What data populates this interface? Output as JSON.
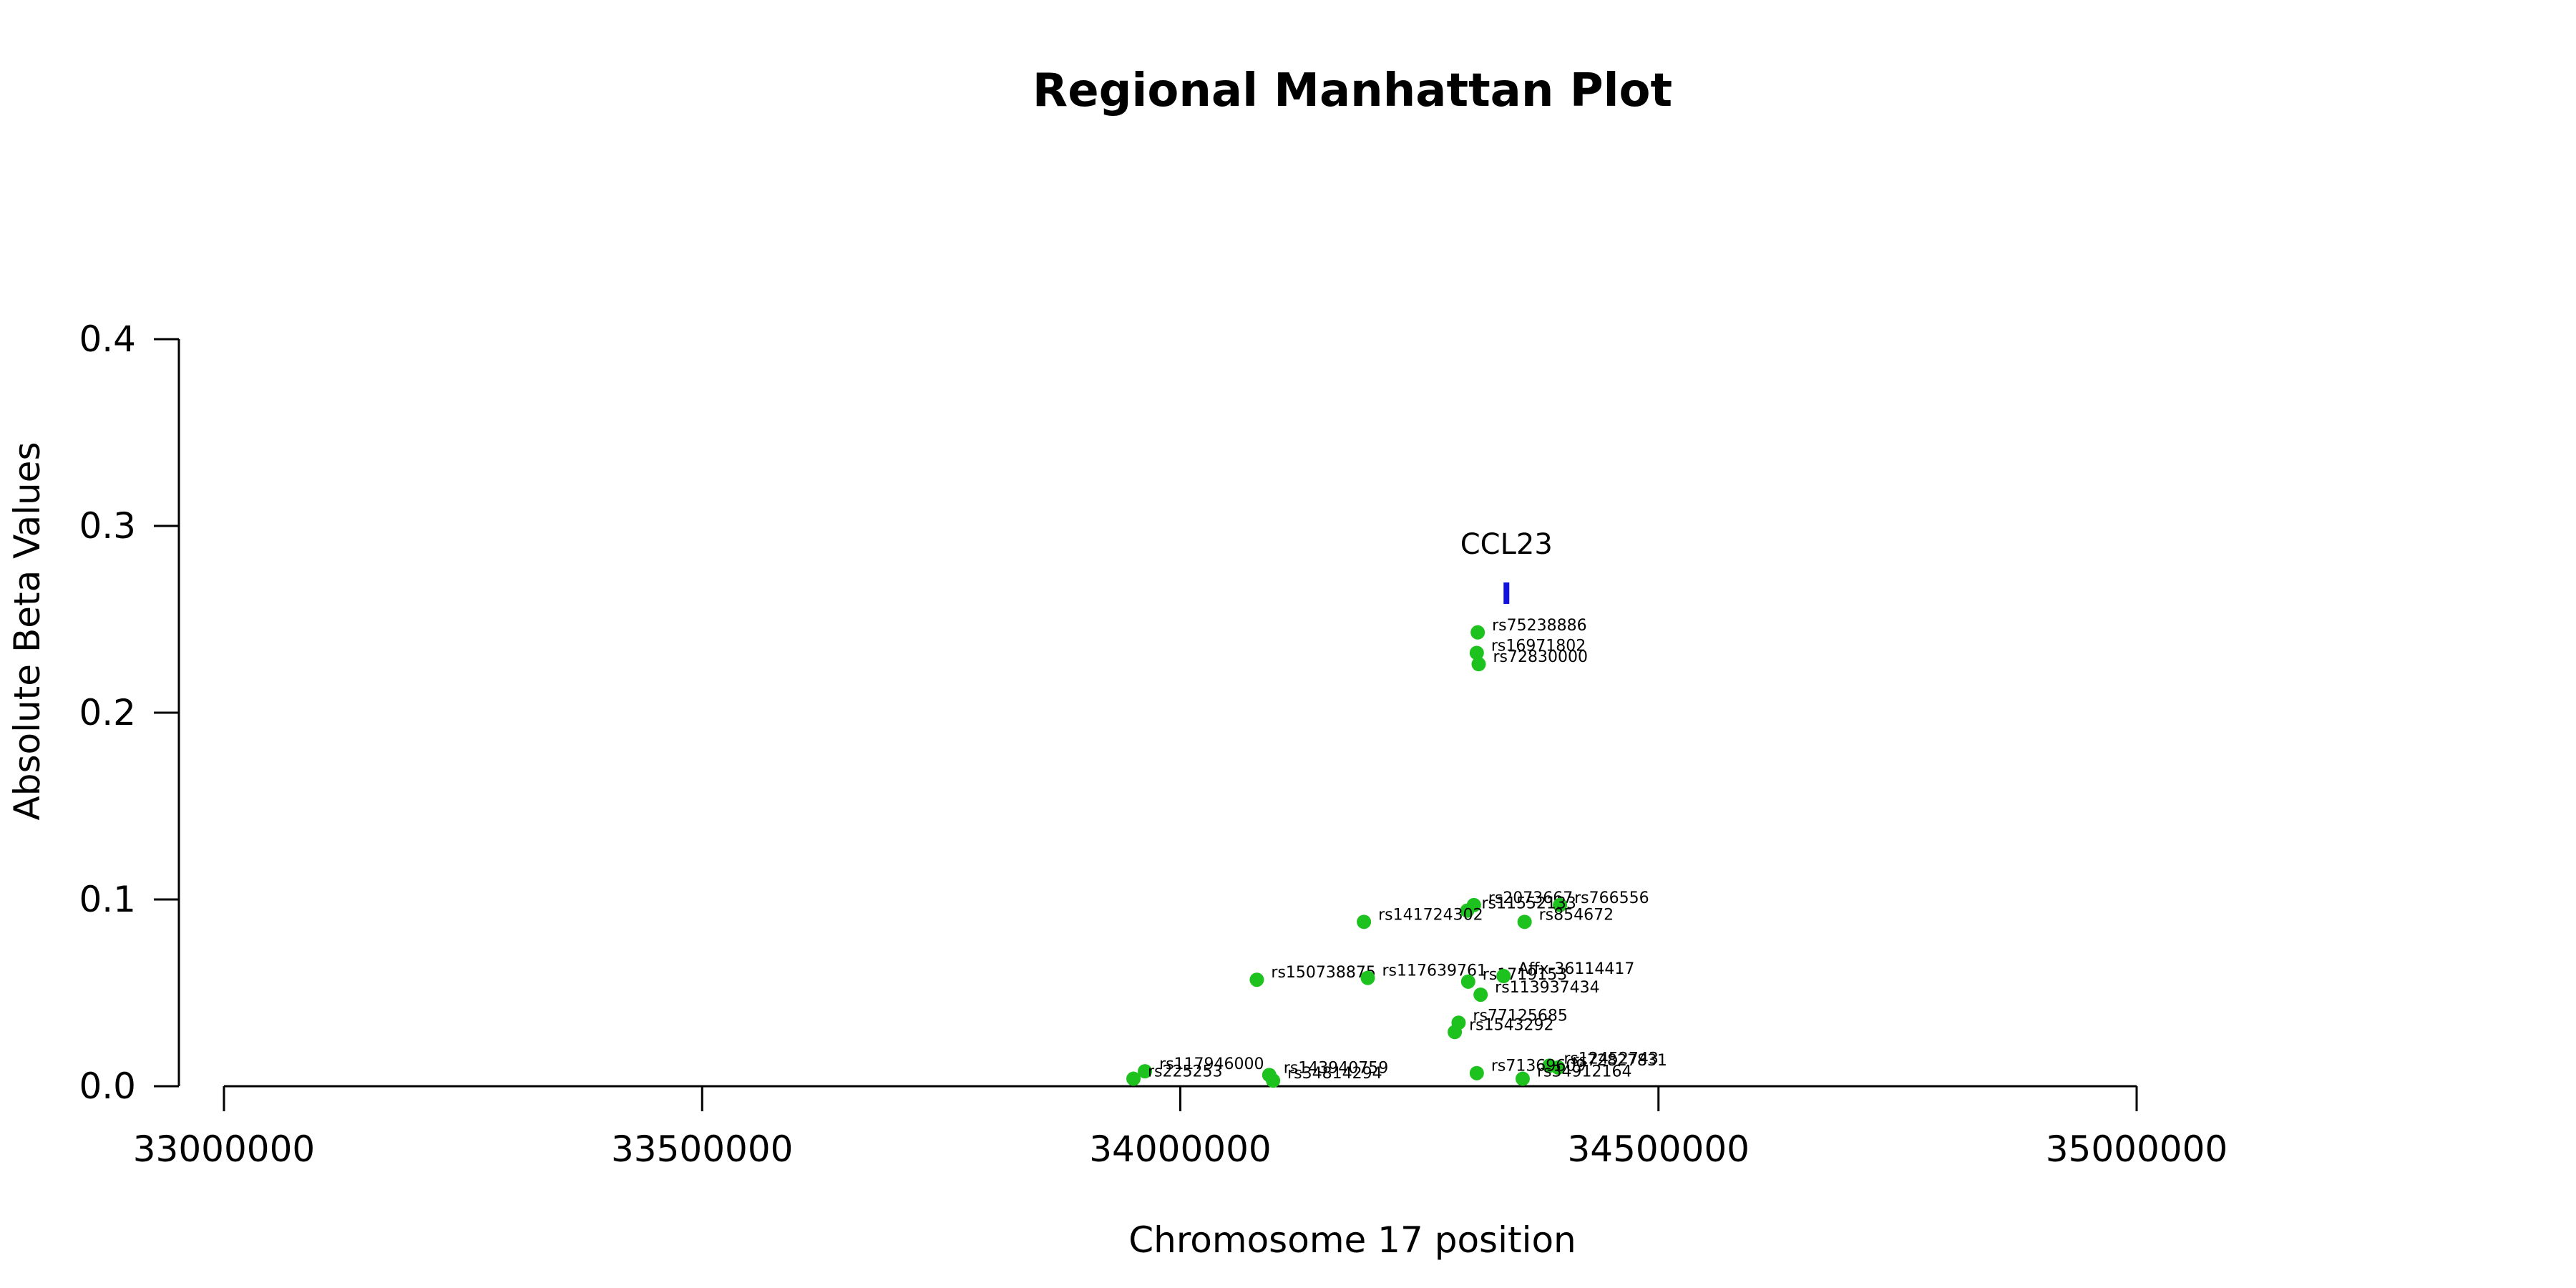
{
  "chart_data": {
    "type": "scatter",
    "title": "Regional Manhattan Plot",
    "xlabel": "Chromosome 17 position",
    "ylabel": "Absolute Beta Values",
    "xlim": [
      33000000,
      35000000
    ],
    "ylim": [
      0,
      0.4
    ],
    "x_ticks": [
      33000000,
      33500000,
      34000000,
      34500000,
      35000000
    ],
    "y_ticks": [
      0.0,
      0.1,
      0.2,
      0.3,
      0.4
    ],
    "x_tick_labels": [
      "33000000",
      "33500000",
      "34000000",
      "34500000",
      "35000000"
    ],
    "y_tick_labels": [
      "0.0",
      "0.1",
      "0.2",
      "0.3",
      "0.4"
    ],
    "grid": false,
    "point_color": "#1ec21e",
    "gene_color": "#1212e0",
    "gene": {
      "name": "CCL23",
      "x": 34341000,
      "y": 0.264
    },
    "points": [
      {
        "label": "rs75238886",
        "x": 34311000,
        "y": 0.243
      },
      {
        "label": "rs16971802",
        "x": 34310000,
        "y": 0.232
      },
      {
        "label": "rs72830000",
        "x": 34312000,
        "y": 0.226
      },
      {
        "label": "rs2073667",
        "x": 34307000,
        "y": 0.097
      },
      {
        "label": "rs766556",
        "x": 34397000,
        "y": 0.097
      },
      {
        "label": "rs11552133",
        "x": 34300000,
        "y": 0.094
      },
      {
        "label": "rs141724302",
        "x": 34192000,
        "y": 0.088
      },
      {
        "label": "rs854672",
        "x": 34360000,
        "y": 0.088
      },
      {
        "label": "rs150738875",
        "x": 34080000,
        "y": 0.057
      },
      {
        "label": "rs117639761",
        "x": 34196000,
        "y": 0.058
      },
      {
        "label": "rs1719153",
        "x": 34301000,
        "y": 0.056
      },
      {
        "label": "Affx-36114417",
        "x": 34338000,
        "y": 0.059
      },
      {
        "label": "rs113937434",
        "x": 34314000,
        "y": 0.049
      },
      {
        "label": "rs77125685",
        "x": 34291000,
        "y": 0.034
      },
      {
        "label": "rs1543292",
        "x": 34287000,
        "y": 0.029
      },
      {
        "label": "rs12452743",
        "x": 34386000,
        "y": 0.011
      },
      {
        "label": "rs72827831",
        "x": 34395000,
        "y": 0.01
      },
      {
        "label": "rs117946000",
        "x": 33963000,
        "y": 0.008
      },
      {
        "label": "rs225253",
        "x": 33951000,
        "y": 0.004
      },
      {
        "label": "rs143940759",
        "x": 34093000,
        "y": 0.006
      },
      {
        "label": "rs34814294",
        "x": 34097000,
        "y": 0.003
      },
      {
        "label": "rs71369609",
        "x": 34310000,
        "y": 0.007
      },
      {
        "label": "rs34912164",
        "x": 34358000,
        "y": 0.004
      }
    ]
  }
}
